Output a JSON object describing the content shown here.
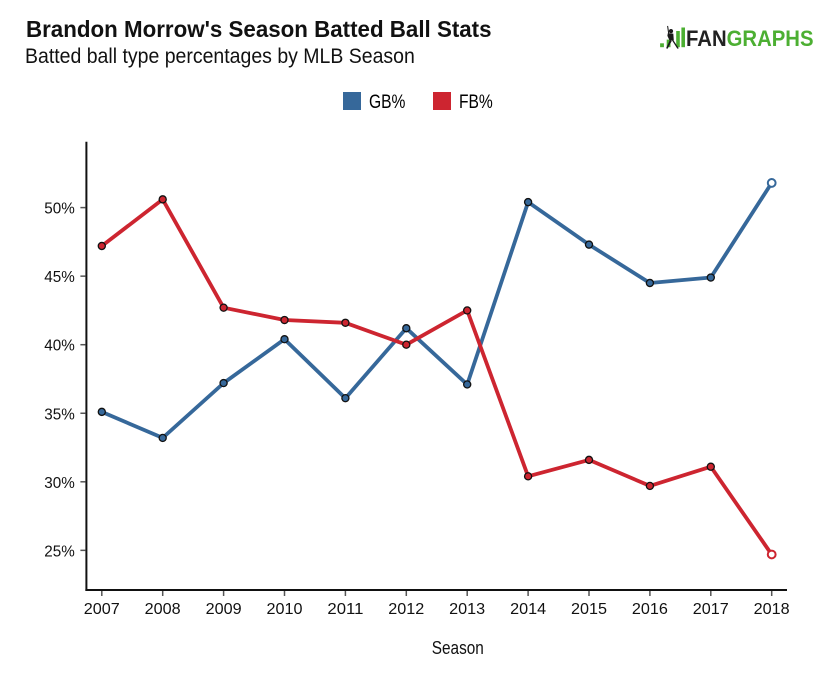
{
  "header": {
    "title": "Brandon Morrow's Season Batted Ball Stats",
    "subtitle": "Batted ball type percentages by MLB Season"
  },
  "logo": {
    "fan": "FAN",
    "graphs": "GRAPHS",
    "dark_color": "#222222",
    "green_color": "#4caf32"
  },
  "legend": {
    "items": [
      {
        "label": "GB%",
        "color": "#36689a"
      },
      {
        "label": "FB%",
        "color": "#cd2530"
      }
    ]
  },
  "chart_data": {
    "type": "line",
    "title": "Brandon Morrow's Season Batted Ball Stats",
    "subtitle": "Batted ball type percentages by MLB Season",
    "xlabel": "Season",
    "ylabel": "",
    "x": [
      2007,
      2008,
      2009,
      2010,
      2011,
      2012,
      2013,
      2014,
      2015,
      2016,
      2017,
      2018
    ],
    "series": [
      {
        "name": "GB%",
        "color": "#36689a",
        "values": [
          35.1,
          33.2,
          37.2,
          40.4,
          36.1,
          41.2,
          37.1,
          50.4,
          47.3,
          44.5,
          44.9,
          51.8
        ],
        "last_point_open": true
      },
      {
        "name": "FB%",
        "color": "#cd2530",
        "values": [
          47.2,
          50.6,
          42.7,
          41.8,
          41.6,
          40.0,
          42.5,
          30.4,
          31.6,
          29.7,
          31.1,
          24.7
        ],
        "last_point_open": true
      }
    ],
    "y_ticks": [
      25,
      30,
      35,
      40,
      45,
      50
    ],
    "y_tick_suffix": "%",
    "ylim": [
      23.3,
      54.8
    ],
    "grid": false,
    "legend_position": "top-center",
    "marker": "circle-dark-ring"
  }
}
